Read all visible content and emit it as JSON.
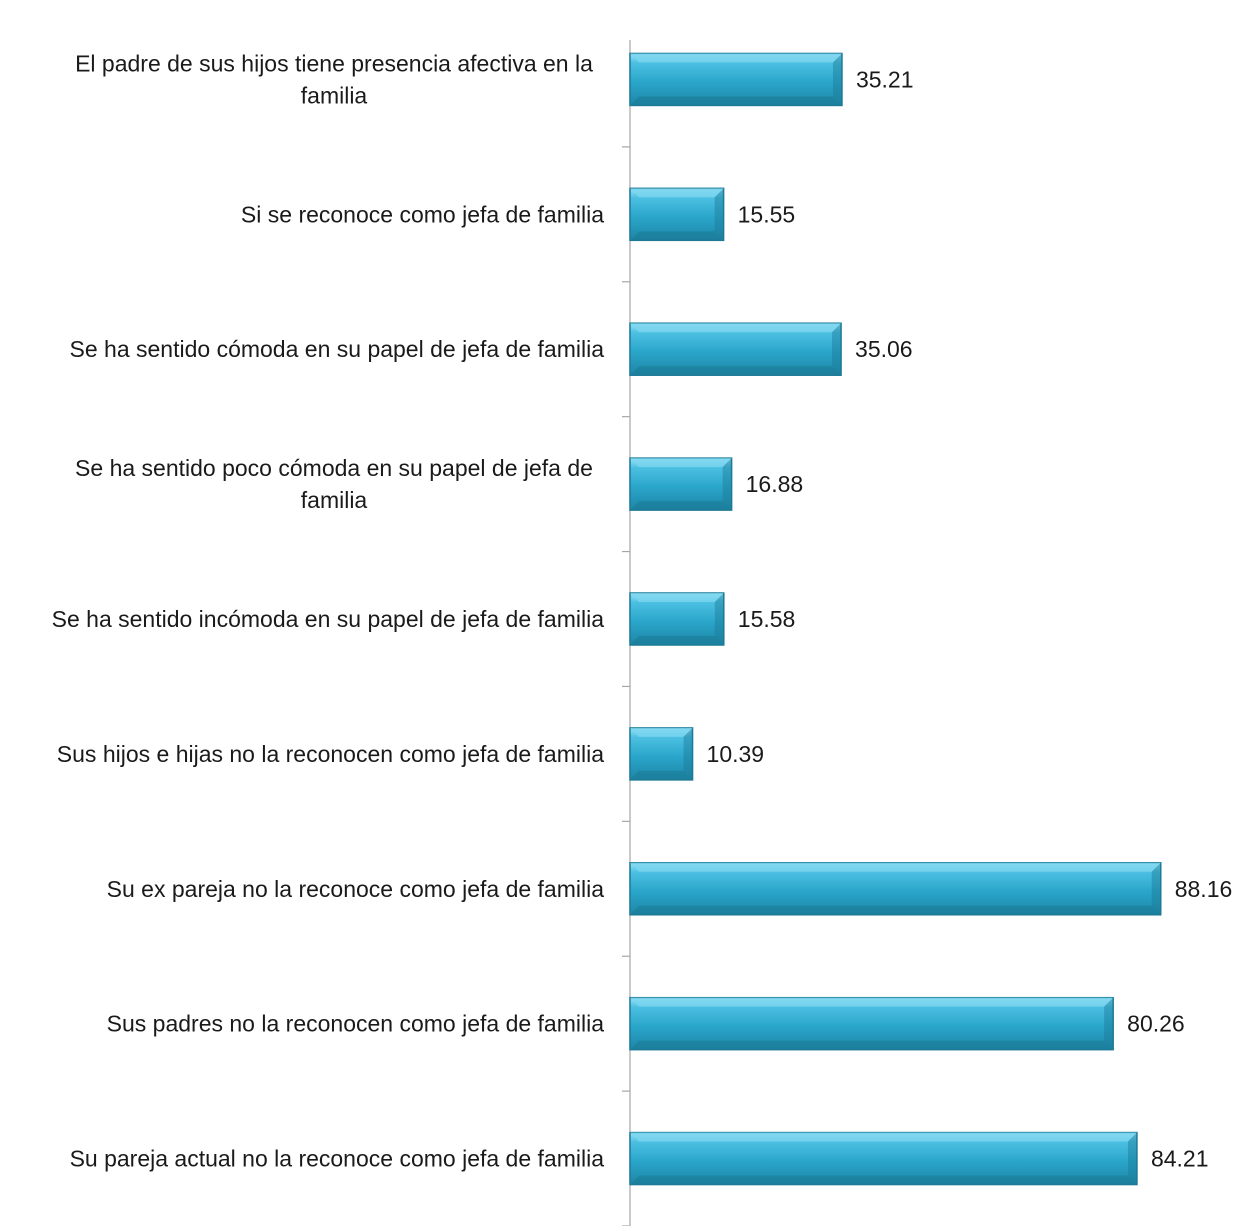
{
  "chart_data": {
    "type": "bar",
    "orientation": "horizontal",
    "title": "",
    "xlabel": "",
    "ylabel": "",
    "xlim": [
      0,
      100
    ],
    "grid": false,
    "legend": "none",
    "bar_color": "#2a9fc0",
    "bar_color_light": "#7ed6ef",
    "bar_color_dark": "#1c7a96",
    "axis_color": "#a6a6a6",
    "text_color": "#1a1a1a",
    "categories": [
      [
        "El padre de sus hijos tiene presencia afectiva en la",
        "familia"
      ],
      [
        "Si  se reconoce como jefa de familia"
      ],
      [
        "Se ha sentido cómoda en su papel de jefa de familia"
      ],
      [
        "Se ha sentido poco cómoda en su papel de jefa de",
        "familia"
      ],
      [
        "Se ha sentido incómoda  en su papel de jefa de familia"
      ],
      [
        "Sus hijos e hijas no la reconocen como jefa de familia"
      ],
      [
        "Su ex pareja no la reconoce como jefa de familia"
      ],
      [
        "Sus padres no la reconocen como jefa de familia"
      ],
      [
        "Su pareja actual no la reconoce como jefa de familia"
      ]
    ],
    "values": [
      35.21,
      15.55,
      35.06,
      16.88,
      15.58,
      10.39,
      88.16,
      80.26,
      84.21
    ],
    "value_labels": [
      "35.21",
      "15.55",
      "35.06",
      "16.88",
      "15.58",
      "10.39",
      "88.16",
      "80.26",
      "84.21"
    ]
  }
}
